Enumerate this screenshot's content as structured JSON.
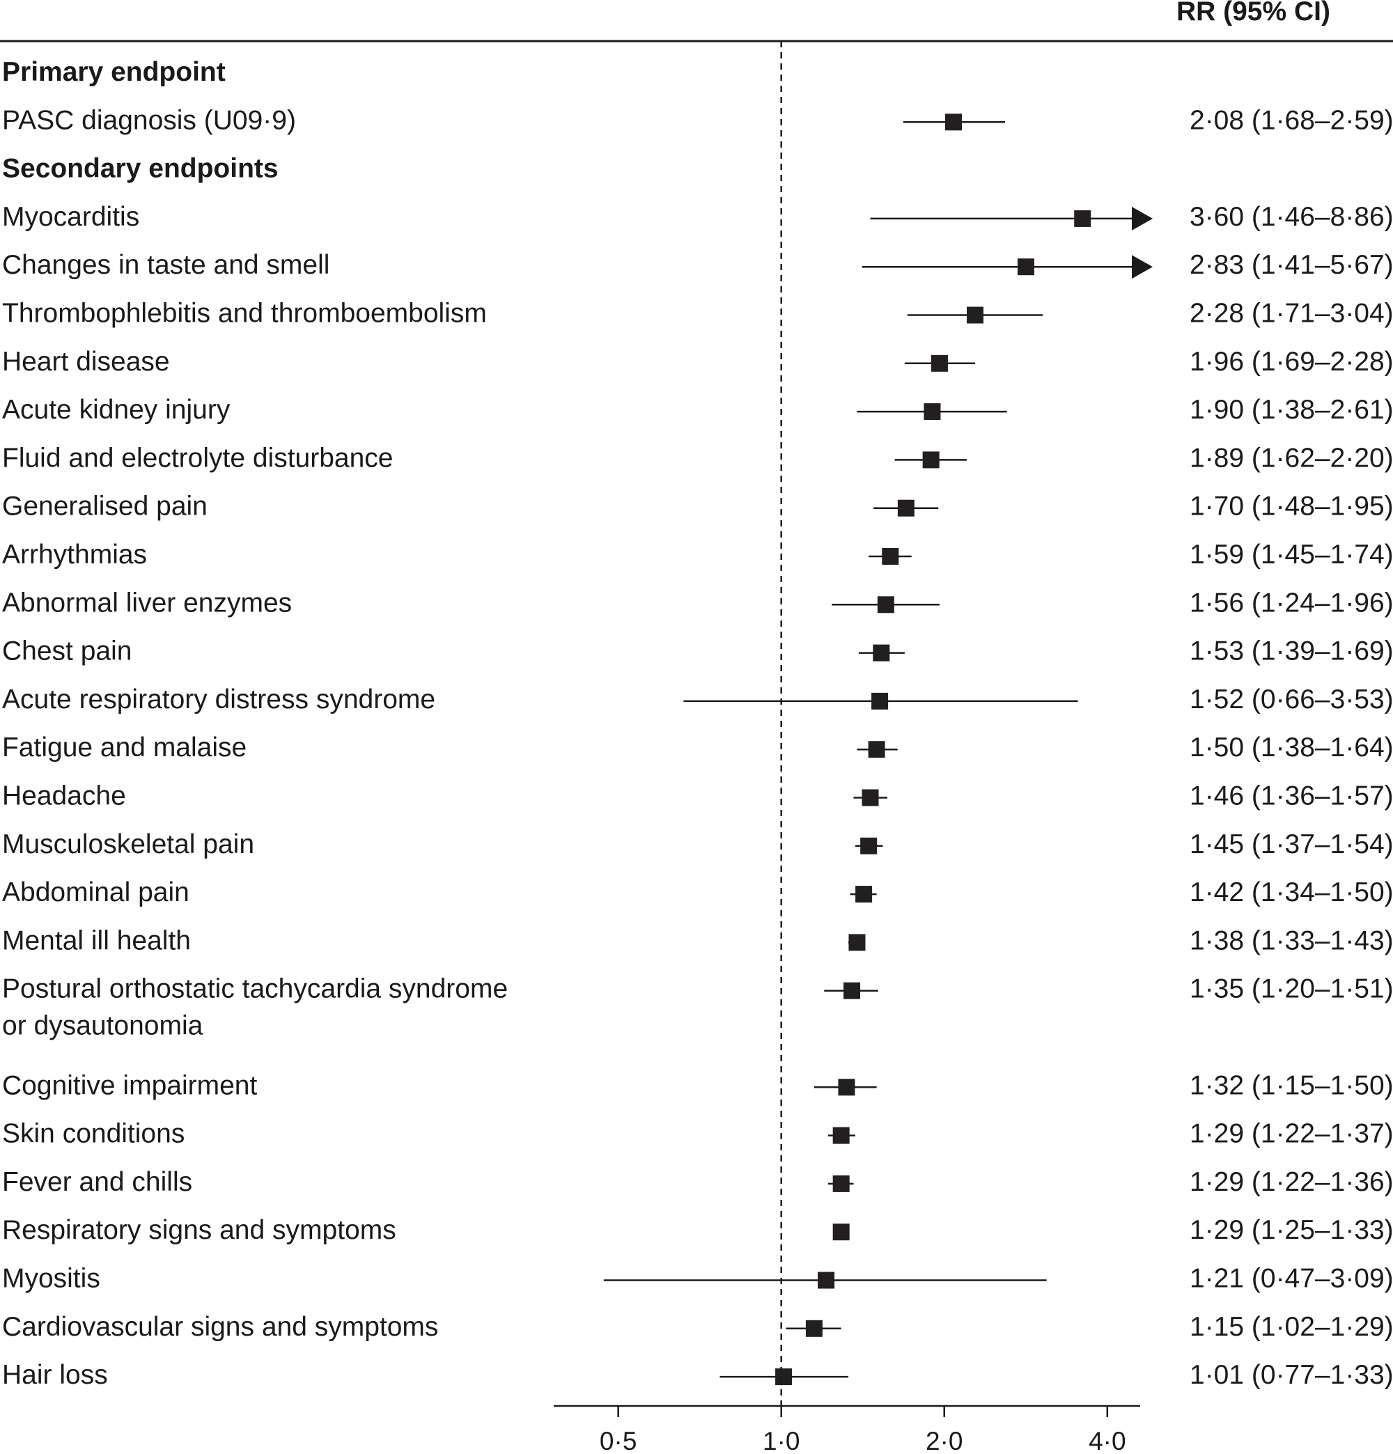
{
  "chart_data": {
    "type": "forest",
    "column_header": "RR (95% CI)",
    "x_scale": "log",
    "xlim": [
      0.38,
      4.6
    ],
    "reference_value": 1.0,
    "x_ticks": [
      {
        "value": 0.5,
        "label": "0·5"
      },
      {
        "value": 1.0,
        "label": "1·0"
      },
      {
        "value": 2.0,
        "label": "2·0"
      },
      {
        "value": 4.0,
        "label": "4·0"
      }
    ],
    "rows": [
      {
        "kind": "header",
        "label": "Primary endpoint"
      },
      {
        "kind": "item",
        "label": "PASC diagnosis (U09·9)",
        "rr": 2.08,
        "lo": 1.68,
        "hi": 2.59,
        "text": "2·08 (1·68–2·59)",
        "weight": 1
      },
      {
        "kind": "header",
        "label": "Secondary endpoints"
      },
      {
        "kind": "item",
        "label": "Myocarditis",
        "rr": 3.6,
        "lo": 1.46,
        "hi": 8.86,
        "text": "3·60 (1·46–8·86)",
        "weight": 1
      },
      {
        "kind": "item",
        "label": "Changes in taste and smell",
        "rr": 2.83,
        "lo": 1.41,
        "hi": 5.67,
        "text": "2·83 (1·41–5·67)",
        "weight": 1
      },
      {
        "kind": "item",
        "label": "Thrombophlebitis and thromboembolism",
        "rr": 2.28,
        "lo": 1.71,
        "hi": 3.04,
        "text": "2·28 (1·71–3·04)",
        "weight": 1
      },
      {
        "kind": "item",
        "label": "Heart disease",
        "rr": 1.96,
        "lo": 1.69,
        "hi": 2.28,
        "text": "1·96 (1·69–2·28)",
        "weight": 1
      },
      {
        "kind": "item",
        "label": "Acute kidney injury",
        "rr": 1.9,
        "lo": 1.38,
        "hi": 2.61,
        "text": "1·90 (1·38–2·61)",
        "weight": 1
      },
      {
        "kind": "item",
        "label": "Fluid and electrolyte disturbance",
        "rr": 1.89,
        "lo": 1.62,
        "hi": 2.2,
        "text": "1·89 (1·62–2·20)",
        "weight": 1
      },
      {
        "kind": "item",
        "label": "Generalised pain",
        "rr": 1.7,
        "lo": 1.48,
        "hi": 1.95,
        "text": "1·70 (1·48–1·95)",
        "weight": 1
      },
      {
        "kind": "item",
        "label": "Arrhythmias",
        "rr": 1.59,
        "lo": 1.45,
        "hi": 1.74,
        "text": "1·59 (1·45–1·74)",
        "weight": 1
      },
      {
        "kind": "item",
        "label": "Abnormal liver enzymes",
        "rr": 1.56,
        "lo": 1.24,
        "hi": 1.96,
        "text": "1·56 (1·24–1·96)",
        "weight": 1
      },
      {
        "kind": "item",
        "label": "Chest pain",
        "rr": 1.53,
        "lo": 1.39,
        "hi": 1.69,
        "text": "1·53 (1·39–1·69)",
        "weight": 1
      },
      {
        "kind": "item",
        "label": "Acute respiratory distress syndrome",
        "rr": 1.52,
        "lo": 0.66,
        "hi": 3.53,
        "text": "1·52 (0·66–3·53)",
        "weight": 1
      },
      {
        "kind": "item",
        "label": "Fatigue and malaise",
        "rr": 1.5,
        "lo": 1.38,
        "hi": 1.64,
        "text": "1·50 (1·38–1·64)",
        "weight": 1
      },
      {
        "kind": "item",
        "label": "Headache",
        "rr": 1.46,
        "lo": 1.36,
        "hi": 1.57,
        "text": "1·46 (1·36–1·57)",
        "weight": 1
      },
      {
        "kind": "item",
        "label": "Musculoskeletal pain",
        "rr": 1.45,
        "lo": 1.37,
        "hi": 1.54,
        "text": "1·45 (1·37–1·54)",
        "weight": 1
      },
      {
        "kind": "item",
        "label": "Abdominal pain",
        "rr": 1.42,
        "lo": 1.34,
        "hi": 1.5,
        "text": "1·42 (1·34–1·50)",
        "weight": 1
      },
      {
        "kind": "item",
        "label": "Mental ill health",
        "rr": 1.38,
        "lo": 1.33,
        "hi": 1.43,
        "text": "1·38 (1·33–1·43)",
        "weight": 1
      },
      {
        "kind": "item",
        "label": "Postural orthostatic tachycardia syndrome",
        "label2": "or dysautonomia",
        "rr": 1.35,
        "lo": 1.2,
        "hi": 1.51,
        "text": "1·35 (1·20–1·51)",
        "weight": 2
      },
      {
        "kind": "item",
        "label": "Cognitive impairment",
        "rr": 1.32,
        "lo": 1.15,
        "hi": 1.5,
        "text": "1·32 (1·15–1·50)",
        "weight": 1
      },
      {
        "kind": "item",
        "label": "Skin conditions",
        "rr": 1.29,
        "lo": 1.22,
        "hi": 1.37,
        "text": "1·29 (1·22–1·37)",
        "weight": 1
      },
      {
        "kind": "item",
        "label": "Fever and chills",
        "rr": 1.29,
        "lo": 1.22,
        "hi": 1.36,
        "text": "1·29 (1·22–1·36)",
        "weight": 1
      },
      {
        "kind": "item",
        "label": "Respiratory signs and symptoms",
        "rr": 1.29,
        "lo": 1.25,
        "hi": 1.33,
        "text": "1·29 (1·25–1·33)",
        "weight": 1
      },
      {
        "kind": "item",
        "label": "Myositis",
        "rr": 1.21,
        "lo": 0.47,
        "hi": 3.09,
        "text": "1·21 (0·47–3·09)",
        "weight": 1
      },
      {
        "kind": "item",
        "label": "Cardiovascular signs and symptoms",
        "rr": 1.15,
        "lo": 1.02,
        "hi": 1.29,
        "text": "1·15 (1·02–1·29)",
        "weight": 1
      },
      {
        "kind": "item",
        "label": "Hair loss",
        "rr": 1.01,
        "lo": 0.77,
        "hi": 1.33,
        "text": "1·01 (0·77–1·33)",
        "weight": 1
      }
    ]
  }
}
